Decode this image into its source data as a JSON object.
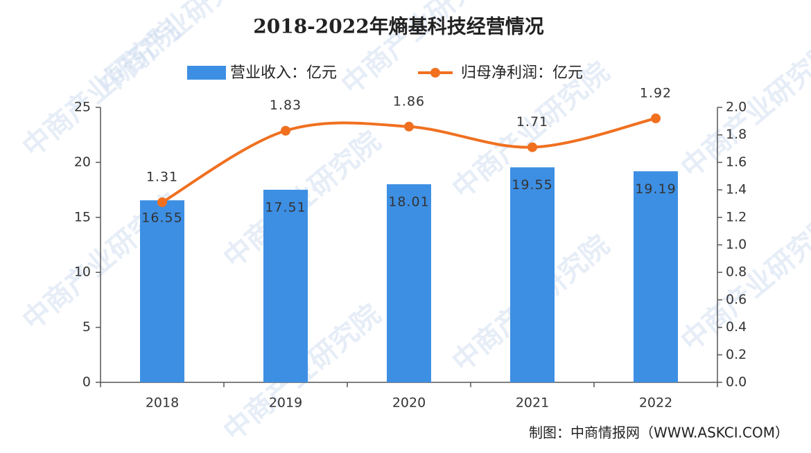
{
  "chart_data": {
    "type": "bar-line",
    "title": "2018-2022年熵基科技经营情况",
    "source": "制图：中商情报网（WWW.ASKCI.COM）",
    "watermark": "中商产业研究院",
    "categories": [
      "2018",
      "2019",
      "2020",
      "2021",
      "2022"
    ],
    "series": [
      {
        "name": "营业收入：亿元",
        "type": "bar",
        "color": "#3d8fe3",
        "values": [
          16.55,
          17.51,
          18.01,
          19.55,
          19.19
        ]
      },
      {
        "name": "归母净利润：亿元",
        "type": "line",
        "axis": "y2",
        "color": "#f07020",
        "values": [
          1.31,
          1.83,
          1.86,
          1.71,
          1.92
        ]
      }
    ],
    "ylim": [
      0,
      25
    ],
    "yticks": [
      0,
      5,
      10,
      15,
      20,
      25
    ],
    "y2lim": [
      0,
      2
    ],
    "y2ticks": [
      {
        "value": 0,
        "label": "0.0"
      },
      0.2,
      0.4,
      0.6,
      0.8,
      {
        "value": 1,
        "label": "1.0"
      },
      1.2,
      1.4,
      1.6,
      1.8,
      {
        "value": 2,
        "label": "2.0"
      }
    ]
  }
}
